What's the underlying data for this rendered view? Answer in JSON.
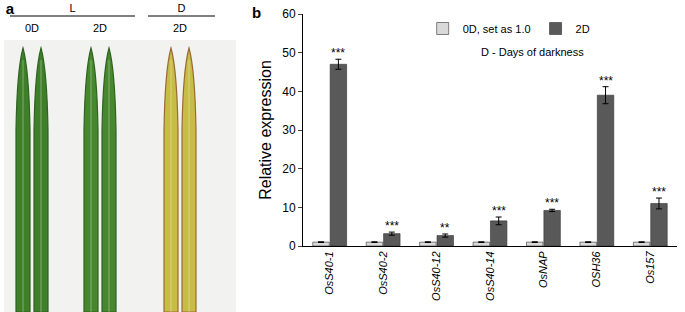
{
  "panel_a": {
    "label": "a",
    "groups": [
      {
        "label": "L",
        "columns": [
          "0D",
          "2D"
        ]
      },
      {
        "label": "D",
        "columns": [
          "2D"
        ]
      }
    ]
  },
  "chart_data": {
    "type": "bar",
    "panel_label": "b",
    "y_label": "Relative expression",
    "categories": [
      "OsS40-1",
      "OsS40-2",
      "OsS40-12",
      "OsS40-14",
      "OsNAP",
      "OSH36",
      "Os157"
    ],
    "series": [
      {
        "name": "0D, set as 1.0",
        "color": "#d9d9d9",
        "values": [
          1,
          1,
          1,
          1,
          1,
          1,
          1
        ],
        "error": [
          0.1,
          0.1,
          0.1,
          0.1,
          0.1,
          0.1,
          0.1
        ]
      },
      {
        "name": "2D",
        "color": "#595959",
        "values": [
          47,
          3.2,
          2.7,
          6.5,
          9.2,
          39,
          11
        ],
        "error": [
          1.3,
          0.4,
          0.4,
          1.0,
          0.3,
          2.2,
          1.4
        ],
        "significance": [
          "***",
          "***",
          "**",
          "***",
          "***",
          "***",
          "***"
        ]
      }
    ],
    "annotations": [
      "D - Days of darkness"
    ],
    "ylim": [
      0,
      60
    ],
    "yticks": [
      0,
      10,
      20,
      30,
      40,
      50,
      60
    ],
    "legend": "top"
  }
}
